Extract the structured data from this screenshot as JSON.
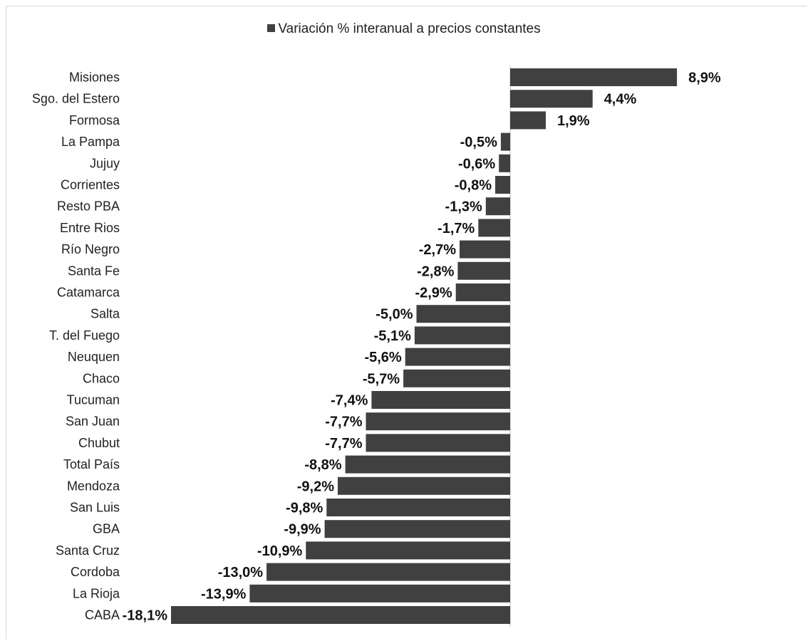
{
  "chart_data": {
    "type": "bar",
    "orientation": "horizontal",
    "legend": "Variación % interanual a precios constantes",
    "legend_position": "top-center",
    "color": "#404040",
    "categories": [
      "Misiones",
      "Sgo. del Estero",
      "Formosa",
      "La Pampa",
      "Jujuy",
      "Corrientes",
      "Resto PBA",
      "Entre Rios",
      "Río Negro",
      "Santa Fe",
      "Catamarca",
      "Salta",
      "T. del Fuego",
      "Neuquen",
      "Chaco",
      "Tucuman",
      "San Juan",
      "Chubut",
      "Total País",
      "Mendoza",
      "San Luis",
      "GBA",
      "Santa Cruz",
      "Cordoba",
      "La Rioja",
      "CABA"
    ],
    "values": [
      8.9,
      4.4,
      1.9,
      -0.5,
      -0.6,
      -0.8,
      -1.3,
      -1.7,
      -2.7,
      -2.8,
      -2.9,
      -5.0,
      -5.1,
      -5.6,
      -5.7,
      -7.4,
      -7.7,
      -7.7,
      -8.8,
      -9.2,
      -9.8,
      -9.9,
      -10.9,
      -13.0,
      -13.9,
      -18.1
    ],
    "labels": [
      "8,9%",
      "4,4%",
      "1,9%",
      "-0,5%",
      "-0,6%",
      "-0,8%",
      "-1,3%",
      "-1,7%",
      "-2,7%",
      "-2,8%",
      "-2,9%",
      "-5,0%",
      "-5,1%",
      "-5,6%",
      "-5,7%",
      "-7,4%",
      "-7,7%",
      "-7,7%",
      "-8,8%",
      "-9,2%",
      "-9,8%",
      "-9,9%",
      "-10,9%",
      "-13,0%",
      "-13,9%",
      "-18,1%"
    ],
    "grid": false
  }
}
